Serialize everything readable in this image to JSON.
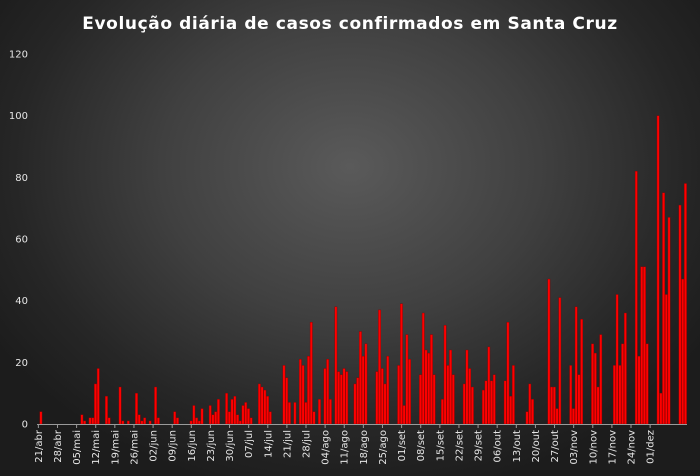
{
  "chart_data": {
    "type": "bar",
    "title": "Evolução  diária  de  casos  confirmados  em  Santa  Cruz",
    "xlabel": "",
    "ylabel": "",
    "ylim": [
      0,
      120
    ],
    "yticks": [
      0,
      20,
      40,
      60,
      80,
      100,
      120
    ],
    "grid": false,
    "legend": "none",
    "bar_color": "#ff0000",
    "bar_edge_color": "#8b0000",
    "x_start": "21/abr",
    "x_end": "05/dez",
    "x_tick_labels": [
      "21/abr",
      "28/abr",
      "05/mai",
      "12/mai",
      "19/mai",
      "26/mai",
      "02/jun",
      "09/jun",
      "16/jun",
      "23/jun",
      "30/jun",
      "07/jul",
      "14/jul",
      "21/jul",
      "28/jul",
      "04/ago",
      "11/ago",
      "18/ago",
      "25/ago",
      "01/set",
      "08/set",
      "15/set",
      "22/set",
      "29/set",
      "06/out",
      "13/out",
      "20/out",
      "27/out",
      "03/nov",
      "10/nov",
      "17/nov",
      "24/nov",
      "01/dez"
    ],
    "values": [
      0,
      4,
      0,
      0,
      0,
      0,
      0,
      0,
      0,
      0,
      0,
      0,
      0,
      0,
      0,
      0,
      3,
      1,
      0,
      2,
      2,
      13,
      18,
      0,
      0,
      9,
      2,
      0,
      0,
      0,
      12,
      1,
      0,
      1,
      0,
      0,
      10,
      3,
      1,
      2,
      0,
      1,
      0,
      12,
      2,
      0,
      0,
      0,
      0,
      0,
      4,
      2,
      0,
      0,
      0,
      0,
      1,
      6,
      2,
      1,
      5,
      0,
      0,
      6,
      3,
      4,
      8,
      0,
      0,
      10,
      4,
      8,
      9,
      3,
      1,
      6,
      7,
      5,
      2,
      0,
      0,
      13,
      12,
      11,
      9,
      4,
      0,
      0,
      0,
      0,
      19,
      15,
      7,
      0,
      7,
      0,
      21,
      19,
      7,
      22,
      33,
      4,
      0,
      8,
      0,
      18,
      21,
      8,
      0,
      38,
      17,
      16,
      18,
      17,
      0,
      0,
      13,
      15,
      30,
      22,
      26,
      0,
      0,
      0,
      17,
      37,
      18,
      13,
      22,
      0,
      0,
      0,
      19,
      39,
      6,
      29,
      21,
      0,
      0,
      0,
      16,
      36,
      24,
      23,
      29,
      16,
      0,
      0,
      8,
      32,
      19,
      24,
      16,
      0,
      0,
      0,
      13,
      24,
      18,
      12,
      0,
      0,
      0,
      11,
      14,
      25,
      14,
      16,
      0,
      0,
      0,
      14,
      33,
      9,
      19,
      0,
      0,
      0,
      0,
      4,
      13,
      8,
      0,
      0,
      0,
      0,
      0,
      47,
      12,
      12,
      5,
      41,
      0,
      0,
      0,
      19,
      5,
      38,
      16,
      34,
      0,
      0,
      0,
      26,
      23,
      12,
      29,
      0,
      0,
      0,
      0,
      19,
      42,
      19,
      26,
      36,
      0,
      0,
      0,
      82,
      22,
      51,
      51,
      26,
      0,
      0,
      0,
      100,
      10,
      75,
      42,
      67,
      0,
      0,
      0,
      71,
      47,
      78
    ]
  }
}
